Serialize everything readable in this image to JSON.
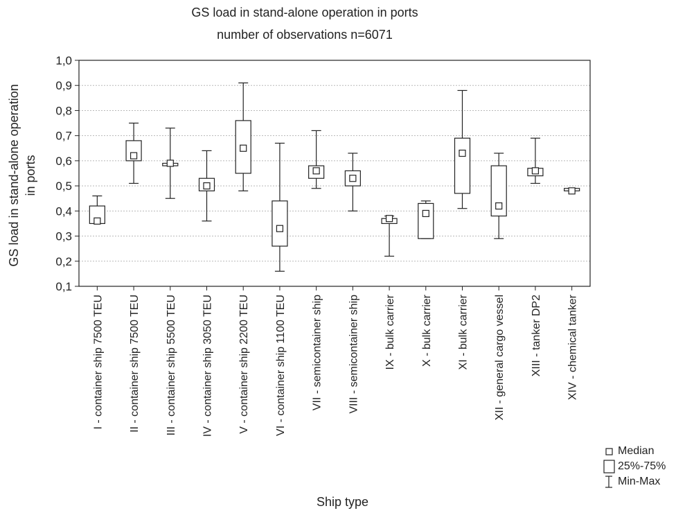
{
  "chart_data": {
    "type": "box",
    "title": "GS load in stand-alone operation in ports",
    "subtitle": "number of observations n=6071",
    "xlabel": "Ship type",
    "ylabel_line1": "GS load in stand-alone operation",
    "ylabel_line2": "in ports",
    "ylim": [
      0.1,
      1.0
    ],
    "yticks": [
      "0,1",
      "0,2",
      "0,3",
      "0,4",
      "0,5",
      "0,6",
      "0,7",
      "0,8",
      "0,9",
      "1,0"
    ],
    "grid": true,
    "legend_position": "bottom-right",
    "legend": [
      {
        "symbol": "median",
        "label": "Median"
      },
      {
        "symbol": "box",
        "label": "25%-75%"
      },
      {
        "symbol": "whisker",
        "label": "Min-Max"
      }
    ],
    "categories": [
      "I - container ship 7500 TEU",
      "II - container ship 7500 TEU",
      "III - container ship 5500 TEU",
      "IV - container ship 3050 TEU",
      "V - container ship 2200 TEU",
      "VI - container ship 1100 TEU",
      "VII - semicontainer ship",
      "VIII - semicontainer ship",
      "IX - bulk carrier",
      "X - bulk carrier",
      "XI - bulk carrier",
      "XII - general cargo vessel",
      "XIII - tanker DP2",
      "XIV - chemical tanker"
    ],
    "boxes": [
      {
        "min": 0.35,
        "q1": 0.35,
        "median": 0.36,
        "q3": 0.42,
        "max": 0.46
      },
      {
        "min": 0.51,
        "q1": 0.6,
        "median": 0.62,
        "q3": 0.68,
        "max": 0.75
      },
      {
        "min": 0.45,
        "q1": 0.58,
        "median": 0.59,
        "q3": 0.59,
        "max": 0.73
      },
      {
        "min": 0.36,
        "q1": 0.48,
        "median": 0.5,
        "q3": 0.53,
        "max": 0.64
      },
      {
        "min": 0.48,
        "q1": 0.55,
        "median": 0.65,
        "q3": 0.76,
        "max": 0.91
      },
      {
        "min": 0.16,
        "q1": 0.26,
        "median": 0.33,
        "q3": 0.44,
        "max": 0.67
      },
      {
        "min": 0.49,
        "q1": 0.53,
        "median": 0.56,
        "q3": 0.58,
        "max": 0.72
      },
      {
        "min": 0.4,
        "q1": 0.5,
        "median": 0.53,
        "q3": 0.56,
        "max": 0.63
      },
      {
        "min": 0.22,
        "q1": 0.35,
        "median": 0.37,
        "q3": 0.37,
        "max": 0.38
      },
      {
        "min": 0.29,
        "q1": 0.29,
        "median": 0.39,
        "q3": 0.43,
        "max": 0.44
      },
      {
        "min": 0.41,
        "q1": 0.47,
        "median": 0.63,
        "q3": 0.69,
        "max": 0.88
      },
      {
        "min": 0.29,
        "q1": 0.38,
        "median": 0.42,
        "q3": 0.58,
        "max": 0.63
      },
      {
        "min": 0.51,
        "q1": 0.54,
        "median": 0.56,
        "q3": 0.57,
        "max": 0.69
      },
      {
        "min": 0.48,
        "q1": 0.48,
        "median": 0.48,
        "q3": 0.49,
        "max": 0.49
      }
    ]
  }
}
